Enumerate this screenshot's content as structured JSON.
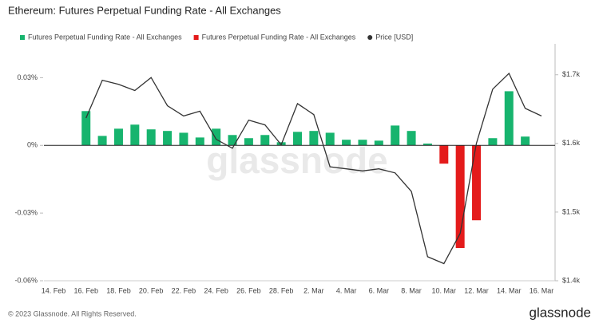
{
  "chart_data": {
    "type": "bar",
    "title": "Ethereum: Futures Perpetual Funding Rate - All Exchanges",
    "watermark": "glassnode",
    "copyright": "© 2023 Glassnode. All Rights Reserved.",
    "logo": "glassnode",
    "legend": "top-left",
    "grid": false,
    "categories": [
      "14. Feb",
      null,
      "16. Feb",
      null,
      "18. Feb",
      null,
      "20. Feb",
      null,
      "22. Feb",
      null,
      "24. Feb",
      null,
      "26. Feb",
      null,
      "28. Feb",
      null,
      "2. Mar",
      null,
      "4. Mar",
      null,
      "6. Mar",
      null,
      "8. Mar",
      null,
      "10. Mar",
      null,
      "12. Mar",
      null,
      "14. Mar",
      null,
      "16. Mar"
    ],
    "ylim": [
      -0.06,
      0.045
    ],
    "yticks": [
      {
        "value": -0.06,
        "label": "-0.06%"
      },
      {
        "value": -0.03,
        "label": "-0.03%"
      },
      {
        "value": 0,
        "label": "0%"
      },
      {
        "value": 0.03,
        "label": "0.03%"
      }
    ],
    "y2lim": [
      1400,
      1745
    ],
    "y2ticks": [
      {
        "value": 1400,
        "label": "$1.4k"
      },
      {
        "value": 1500,
        "label": "$1.5k"
      },
      {
        "value": 1600,
        "label": "$1.6k"
      },
      {
        "value": 1700,
        "label": "$1.7k"
      }
    ],
    "series": [
      {
        "name": "Futures Perpetual Funding Rate - All Exchanges",
        "type": "bar",
        "color": "#17b46e",
        "values": [
          null,
          null,
          0.0152,
          0.0042,
          0.0074,
          0.0092,
          0.0071,
          0.0064,
          0.0056,
          0.0035,
          0.0074,
          0.0046,
          0.0032,
          0.0046,
          0.0014,
          0.006,
          0.0064,
          0.0056,
          0.0025,
          0.0025,
          0.0021,
          0.0088,
          0.0064,
          0.0008,
          null,
          null,
          null,
          0.0032,
          0.024,
          0.0039,
          null
        ]
      },
      {
        "name": "Futures Perpetual Funding Rate - All Exchanges",
        "type": "bar",
        "color": "#e41b1b",
        "values": [
          null,
          null,
          null,
          null,
          null,
          null,
          null,
          null,
          null,
          null,
          null,
          null,
          null,
          null,
          null,
          null,
          null,
          null,
          null,
          null,
          null,
          null,
          null,
          null,
          -0.0081,
          -0.0455,
          -0.0332,
          null,
          null,
          null,
          null
        ]
      },
      {
        "name": "Price [USD]",
        "type": "line",
        "axis": "y2",
        "color": "#333333",
        "values": [
          null,
          null,
          1637,
          1692,
          1686,
          1677,
          1696,
          1655,
          1640,
          1647,
          1606,
          1593,
          1634,
          1627,
          1598,
          1658,
          1642,
          1566,
          1563,
          1560,
          1563,
          1557,
          1530,
          1435,
          1425,
          1469,
          1600,
          1679,
          1702,
          1651,
          1640
        ]
      }
    ]
  }
}
